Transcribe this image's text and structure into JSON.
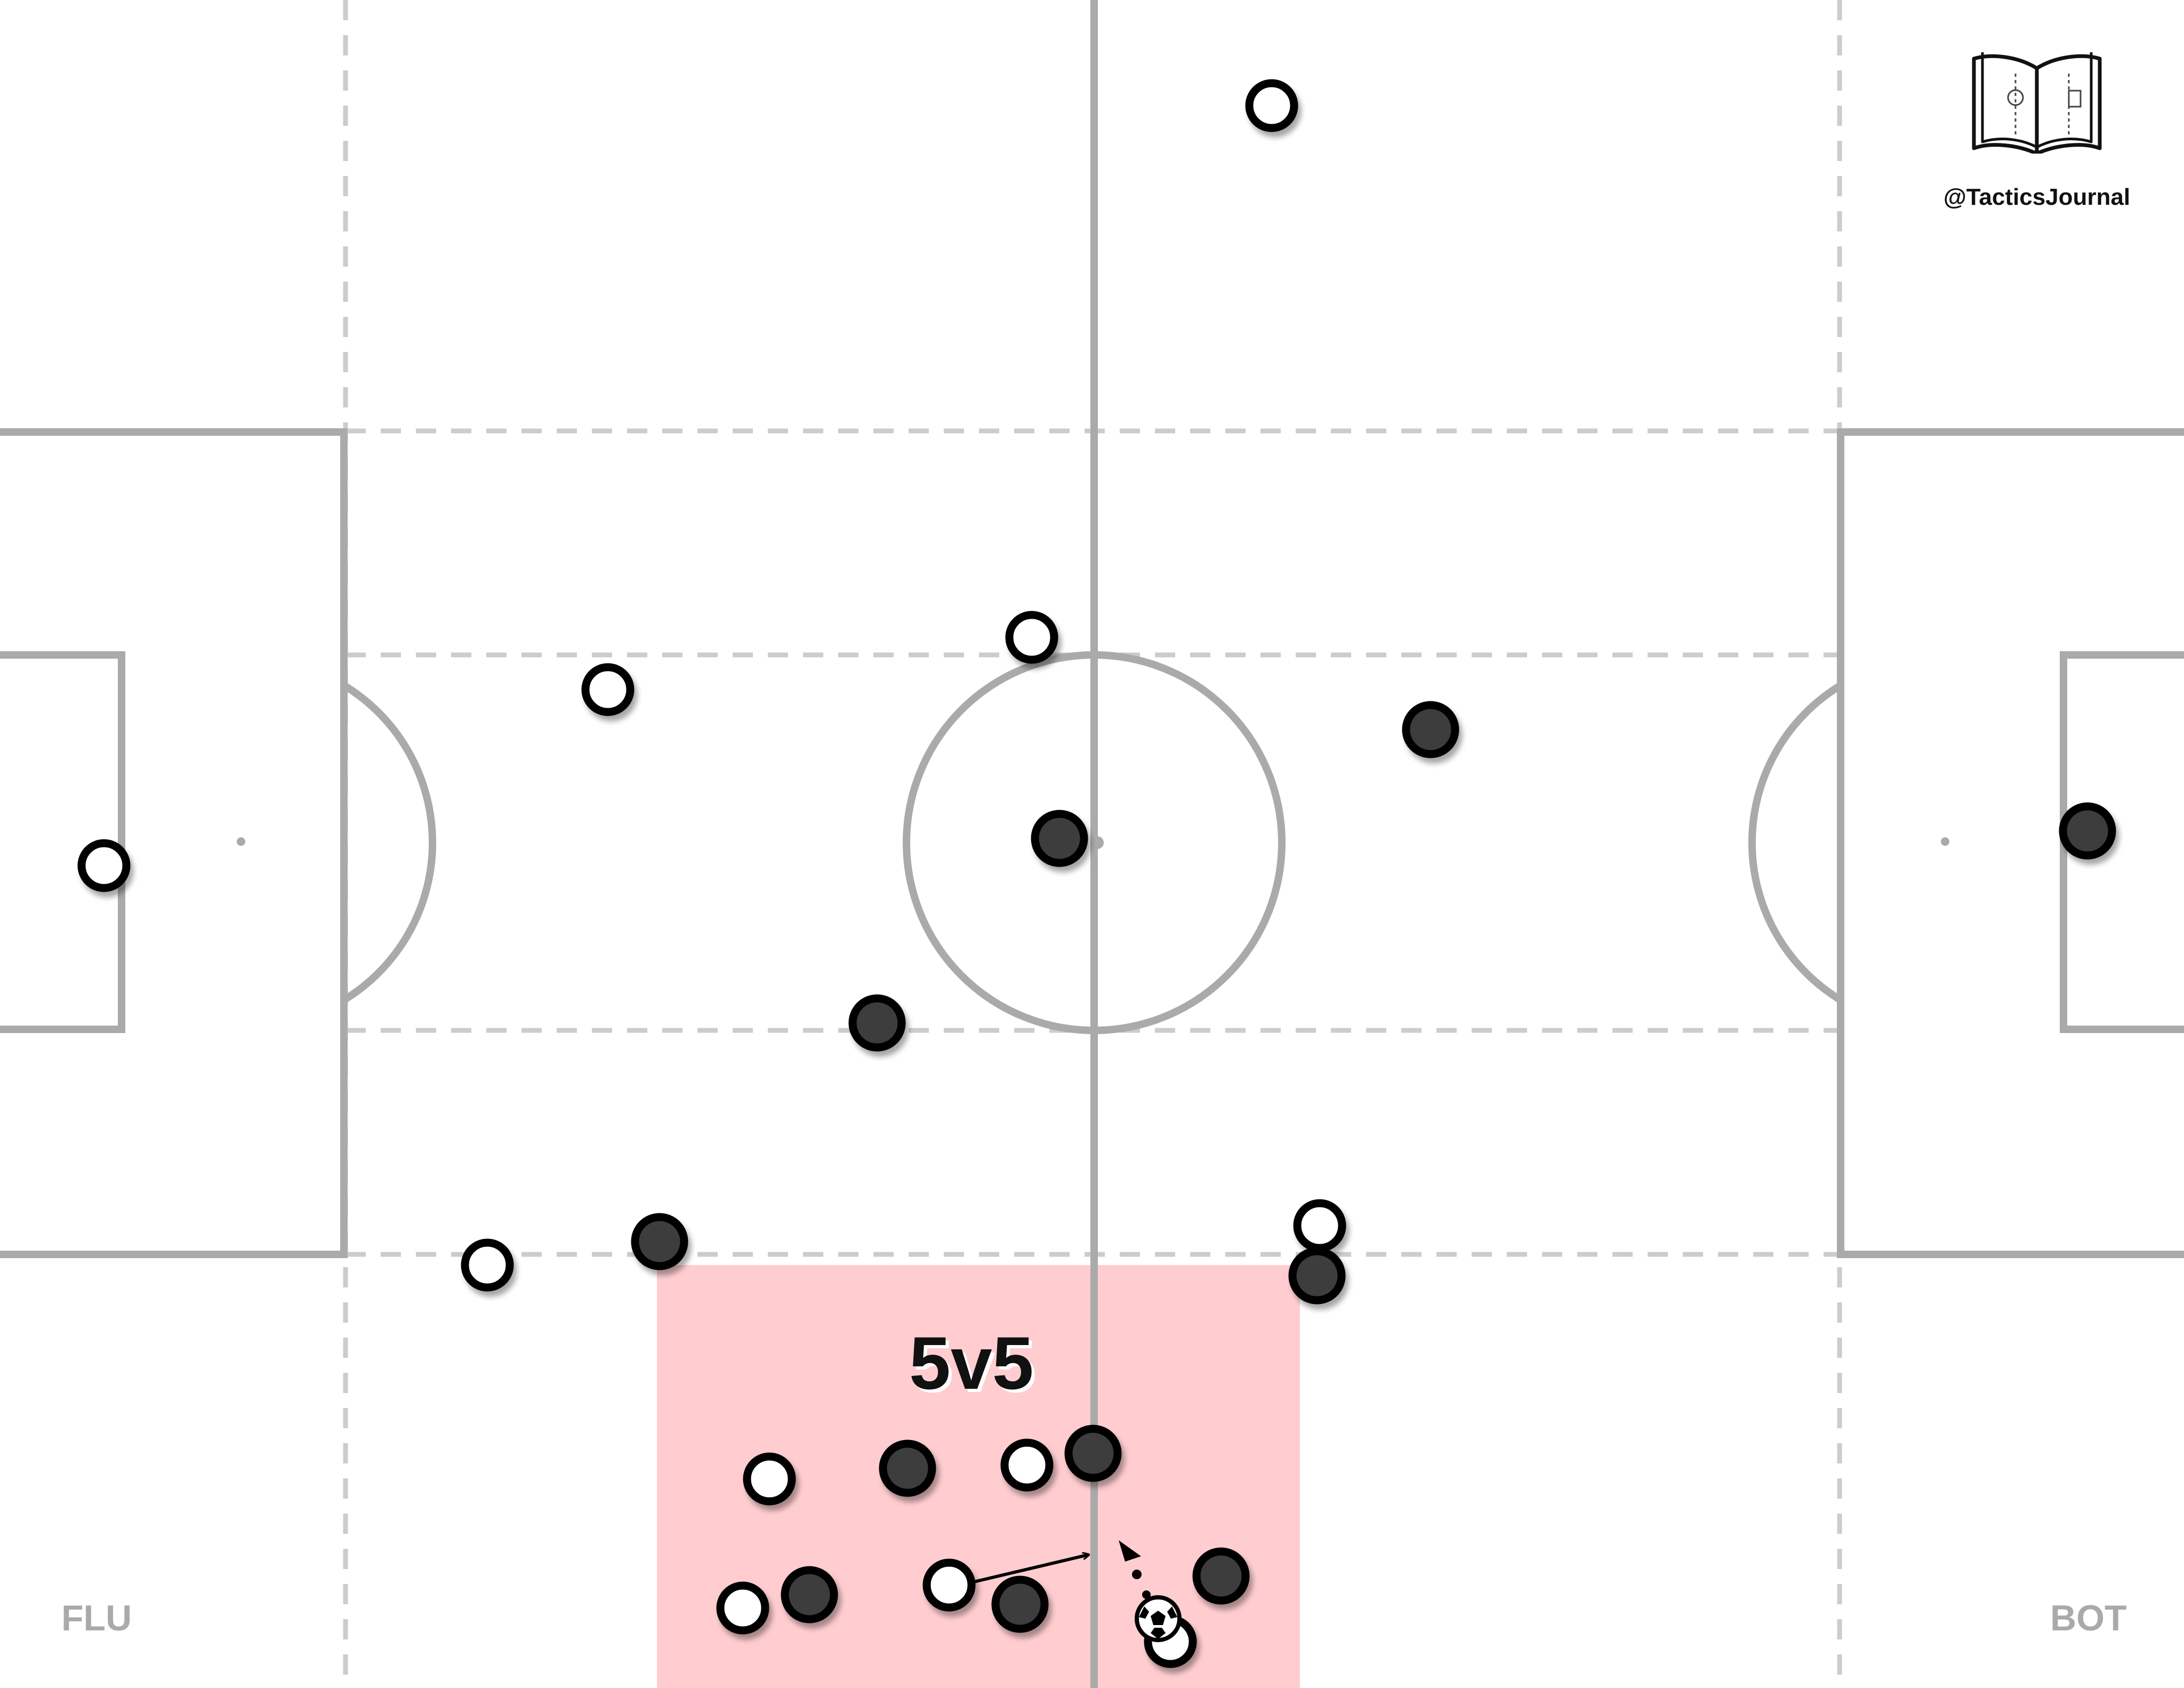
{
  "branding": {
    "handle": "@TacticsJournal",
    "logo_icon": "open-book-icon"
  },
  "teams": {
    "left_label": "FLU",
    "right_label": "BOT"
  },
  "overload_zone": {
    "label": "5v5",
    "color": "#ffcdd0"
  },
  "colors": {
    "pitch_lines": "#aaaaaa",
    "zone_lines": "#cccccc",
    "team_white_fill": "#ffffff",
    "team_dark_fill": "#3d3d3d",
    "player_outline": "#000000"
  },
  "icons": {
    "ball": "soccer-ball-icon",
    "pass_arrow": "arrow-icon"
  }
}
